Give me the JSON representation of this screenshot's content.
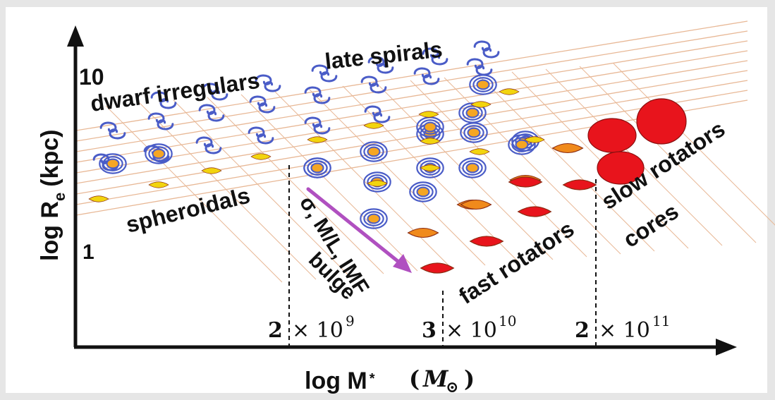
{
  "axes": {
    "y_label_main": "log R",
    "y_label_sub": "e",
    "y_label_unit": "(kpc)",
    "y_tick_top": "10",
    "y_tick_bottom": "1",
    "x_label_main": "log M",
    "x_label_sub": "*",
    "x_label_unit_open": "(",
    "x_label_unit_symbol": "M",
    "x_label_unit_sun": "⊙",
    "x_label_unit_close": ")"
  },
  "regions": {
    "late_spirals": "late spirals",
    "dwarf_irregulars": "dwarf irregulars",
    "spheroidals": "spheroidals",
    "fast_rotators": "fast rotators",
    "slow_rotators": "slow rotators",
    "cores": "cores",
    "trend_line1": "σ, M/L, IMF",
    "trend_line2": "bulge"
  },
  "mass_ticks": [
    {
      "mult": "2",
      "times": "× 10",
      "exp": "9"
    },
    {
      "mult": "3",
      "times": "× 10",
      "exp": "10"
    },
    {
      "mult": "2",
      "times": "× 10",
      "exp": "11"
    }
  ],
  "colors": {
    "frame": "#ffffff",
    "grid": "#e8b896",
    "spiral_arm": "#5566cc",
    "spiral_core": "#f5a623",
    "spheroidal": "#f2d40e",
    "orange_lens": "#f08a1c",
    "red_lens": "#e8141c",
    "arrow": "#b050c0"
  }
}
